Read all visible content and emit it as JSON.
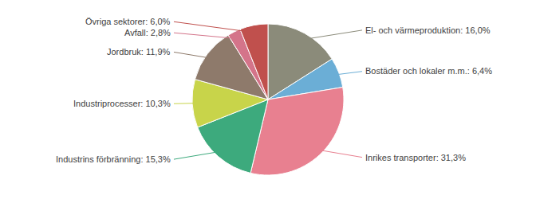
{
  "chart_data": {
    "type": "pie",
    "categories": [
      "El- och värmeproduktion: 16,0%",
      "Bostäder och lokaler m.m.: 6,4%",
      "Inrikes transporter: 31,3%",
      "Industrins förbränning: 15,3%",
      "Industriprocesser: 10,3%",
      "Jordbruk: 11,9%",
      "Avfall: 2,8%",
      "Övriga sektorer: 6,0%"
    ],
    "values": [
      16.0,
      6.4,
      31.3,
      15.3,
      10.3,
      11.9,
      2.8,
      6.0
    ],
    "colors": [
      "#8B8B7A",
      "#6BAED6",
      "#E88090",
      "#3DAA7D",
      "#C8D44A",
      "#8E7A6B",
      "#D4748A",
      "#C0504D"
    ]
  }
}
